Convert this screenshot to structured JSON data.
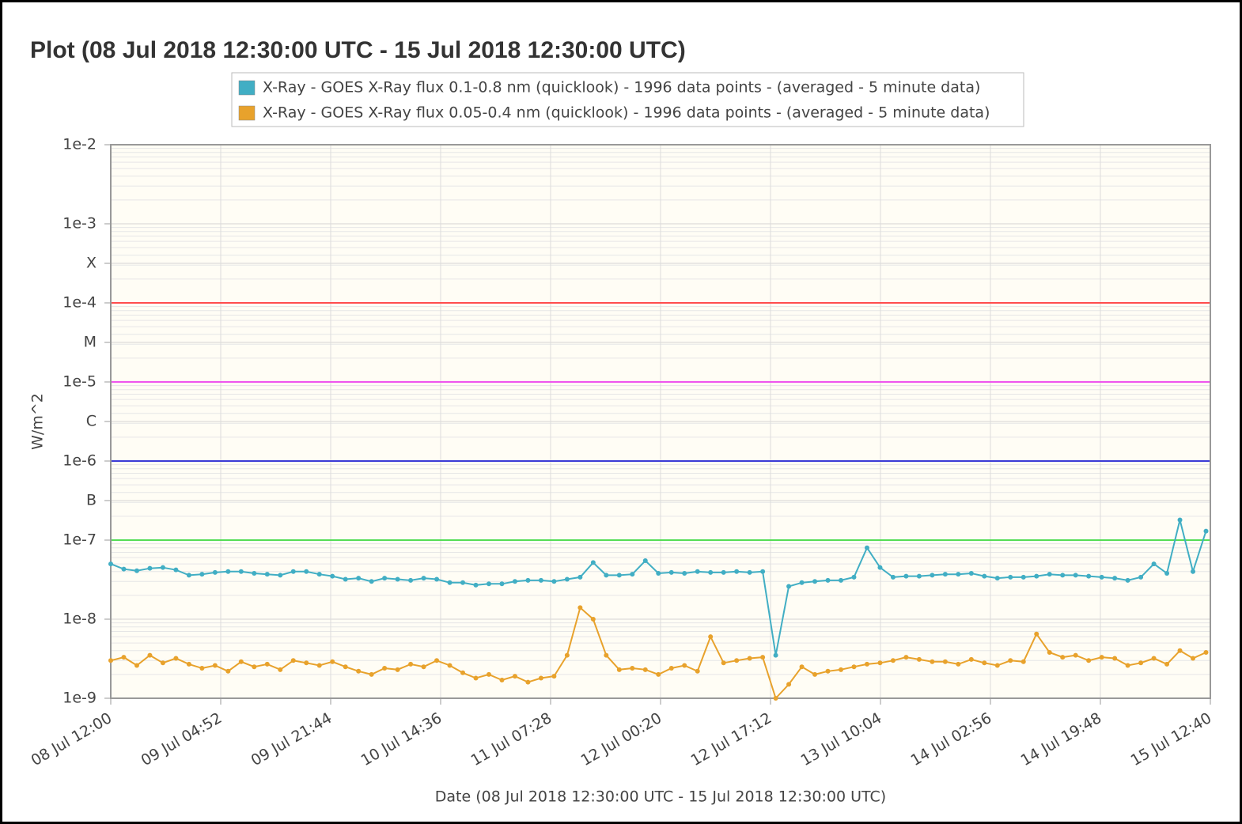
{
  "chart_data": {
    "type": "line",
    "title": "Plot (08 Jul 2018 12:30:00 UTC - 15 Jul 2018 12:30:00 UTC)",
    "x_label": "Date (08 Jul 2018 12:30:00 UTC - 15 Jul 2018 12:30:00 UTC)",
    "y_label": "W/m^2",
    "log_scale": true,
    "grid": true,
    "legend": "top",
    "xlim": [
      "2018-07-08T12:00",
      "2018-07-15T12:40"
    ],
    "xticks": [
      {
        "value": "2018-07-08T12:00",
        "label": "08 Jul 12:00"
      },
      {
        "value": "2018-07-09T04:52",
        "label": "09 Jul 04:52"
      },
      {
        "value": "2018-07-09T21:44",
        "label": "09 Jul 21:44"
      },
      {
        "value": "2018-07-10T14:36",
        "label": "10 Jul 14:36"
      },
      {
        "value": "2018-07-11T07:28",
        "label": "11 Jul 07:28"
      },
      {
        "value": "2018-07-12T00:20",
        "label": "12 Jul 00:20"
      },
      {
        "value": "2018-07-12T17:12",
        "label": "12 Jul 17:12"
      },
      {
        "value": "2018-07-13T10:04",
        "label": "13 Jul 10:04"
      },
      {
        "value": "2018-07-14T02:56",
        "label": "14 Jul 02:56"
      },
      {
        "value": "2018-07-14T19:48",
        "label": "14 Jul 19:48"
      },
      {
        "value": "2018-07-15T12:40",
        "label": "15 Jul 12:40"
      }
    ],
    "ylim": [
      1e-09,
      0.01
    ],
    "yticks": [
      {
        "value": 1e-09,
        "label": "1e-9"
      },
      {
        "value": 1e-08,
        "label": "1e-8"
      },
      {
        "value": 1e-07,
        "label": "1e-7"
      },
      {
        "value": 3.162e-07,
        "label": "B"
      },
      {
        "value": 1e-06,
        "label": "1e-6"
      },
      {
        "value": 3.162e-06,
        "label": "C"
      },
      {
        "value": 1e-05,
        "label": "1e-5"
      },
      {
        "value": 3.162e-05,
        "label": "M"
      },
      {
        "value": 0.0001,
        "label": "1e-4"
      },
      {
        "value": 0.0003162,
        "label": "X"
      },
      {
        "value": 0.001,
        "label": "1e-3"
      },
      {
        "value": 0.01,
        "label": "1e-2"
      }
    ],
    "thresholds": [
      {
        "value": 0.0001,
        "color": "#ff4d4d"
      },
      {
        "value": 1e-05,
        "color": "#ee55ee"
      },
      {
        "value": 1e-06,
        "color": "#3a3ad6"
      },
      {
        "value": 1e-07,
        "color": "#55dd55"
      }
    ],
    "x": [
      "2018-07-08T12:00",
      "2018-07-08T14:00",
      "2018-07-08T16:00",
      "2018-07-08T18:00",
      "2018-07-08T20:00",
      "2018-07-08T22:00",
      "2018-07-09T00:00",
      "2018-07-09T02:00",
      "2018-07-09T04:00",
      "2018-07-09T06:00",
      "2018-07-09T08:00",
      "2018-07-09T10:00",
      "2018-07-09T12:00",
      "2018-07-09T14:00",
      "2018-07-09T16:00",
      "2018-07-09T18:00",
      "2018-07-09T20:00",
      "2018-07-09T22:00",
      "2018-07-10T00:00",
      "2018-07-10T02:00",
      "2018-07-10T04:00",
      "2018-07-10T06:00",
      "2018-07-10T08:00",
      "2018-07-10T10:00",
      "2018-07-10T12:00",
      "2018-07-10T14:00",
      "2018-07-10T16:00",
      "2018-07-10T18:00",
      "2018-07-10T20:00",
      "2018-07-10T22:00",
      "2018-07-11T00:00",
      "2018-07-11T02:00",
      "2018-07-11T04:00",
      "2018-07-11T06:00",
      "2018-07-11T08:00",
      "2018-07-11T10:00",
      "2018-07-11T12:00",
      "2018-07-11T14:00",
      "2018-07-11T16:00",
      "2018-07-11T18:00",
      "2018-07-11T20:00",
      "2018-07-11T22:00",
      "2018-07-12T00:00",
      "2018-07-12T02:00",
      "2018-07-12T04:00",
      "2018-07-12T06:00",
      "2018-07-12T08:00",
      "2018-07-12T10:00",
      "2018-07-12T12:00",
      "2018-07-12T14:00",
      "2018-07-12T16:00",
      "2018-07-12T18:00",
      "2018-07-12T20:00",
      "2018-07-12T22:00",
      "2018-07-13T00:00",
      "2018-07-13T02:00",
      "2018-07-13T04:00",
      "2018-07-13T06:00",
      "2018-07-13T08:00",
      "2018-07-13T10:00",
      "2018-07-13T12:00",
      "2018-07-13T14:00",
      "2018-07-13T16:00",
      "2018-07-13T18:00",
      "2018-07-13T20:00",
      "2018-07-13T22:00",
      "2018-07-14T00:00",
      "2018-07-14T02:00",
      "2018-07-14T04:00",
      "2018-07-14T06:00",
      "2018-07-14T08:00",
      "2018-07-14T10:00",
      "2018-07-14T12:00",
      "2018-07-14T14:00",
      "2018-07-14T16:00",
      "2018-07-14T18:00",
      "2018-07-14T20:00",
      "2018-07-14T22:00",
      "2018-07-15T00:00",
      "2018-07-15T02:00",
      "2018-07-15T04:00",
      "2018-07-15T06:00",
      "2018-07-15T08:00",
      "2018-07-15T10:00",
      "2018-07-15T12:00"
    ],
    "series": [
      {
        "name": "X-Ray - GOES X-Ray flux 0.1-0.8 nm (quicklook) - 1996 data points - (averaged - 5 minute data)",
        "color": "#41aec4",
        "values": [
          5e-08,
          4.3e-08,
          4.1e-08,
          4.4e-08,
          4.5e-08,
          4.2e-08,
          3.6e-08,
          3.7e-08,
          3.9e-08,
          4e-08,
          4e-08,
          3.8e-08,
          3.7e-08,
          3.6e-08,
          4e-08,
          4e-08,
          3.7e-08,
          3.5e-08,
          3.2e-08,
          3.3e-08,
          3e-08,
          3.3e-08,
          3.2e-08,
          3.1e-08,
          3.3e-08,
          3.2e-08,
          2.9e-08,
          2.9e-08,
          2.7e-08,
          2.8e-08,
          2.8e-08,
          3e-08,
          3.1e-08,
          3.1e-08,
          3e-08,
          3.2e-08,
          3.4e-08,
          5.2e-08,
          3.6e-08,
          3.6e-08,
          3.7e-08,
          5.5e-08,
          3.8e-08,
          3.9e-08,
          3.8e-08,
          4e-08,
          3.9e-08,
          3.9e-08,
          4e-08,
          3.9e-08,
          4e-08,
          3.5e-09,
          2.6e-08,
          2.9e-08,
          3e-08,
          3.1e-08,
          3.1e-08,
          3.4e-08,
          8e-08,
          4.5e-08,
          3.4e-08,
          3.5e-08,
          3.5e-08,
          3.6e-08,
          3.7e-08,
          3.7e-08,
          3.8e-08,
          3.5e-08,
          3.3e-08,
          3.4e-08,
          3.4e-08,
          3.5e-08,
          3.7e-08,
          3.6e-08,
          3.6e-08,
          3.5e-08,
          3.4e-08,
          3.3e-08,
          3.1e-08,
          3.4e-08,
          5e-08,
          3.8e-08,
          1.8e-07,
          4e-08,
          1.3e-07
        ]
      },
      {
        "name": "X-Ray - GOES X-Ray flux 0.05-0.4 nm (quicklook) - 1996 data points - (averaged - 5 minute data)",
        "color": "#e8a22c",
        "values": [
          3e-09,
          3.3e-09,
          2.6e-09,
          3.5e-09,
          2.8e-09,
          3.2e-09,
          2.7e-09,
          2.4e-09,
          2.6e-09,
          2.2e-09,
          2.9e-09,
          2.5e-09,
          2.7e-09,
          2.3e-09,
          3e-09,
          2.8e-09,
          2.6e-09,
          2.9e-09,
          2.5e-09,
          2.2e-09,
          2e-09,
          2.4e-09,
          2.3e-09,
          2.7e-09,
          2.5e-09,
          3e-09,
          2.6e-09,
          2.1e-09,
          1.8e-09,
          2e-09,
          1.7e-09,
          1.9e-09,
          1.6e-09,
          1.8e-09,
          1.9e-09,
          3.5e-09,
          1.4e-08,
          1e-08,
          3.5e-09,
          2.3e-09,
          2.4e-09,
          2.3e-09,
          2e-09,
          2.4e-09,
          2.6e-09,
          2.2e-09,
          6e-09,
          2.8e-09,
          3e-09,
          3.2e-09,
          3.3e-09,
          1e-09,
          1.5e-09,
          2.5e-09,
          2e-09,
          2.2e-09,
          2.3e-09,
          2.5e-09,
          2.7e-09,
          2.8e-09,
          3e-09,
          3.3e-09,
          3.1e-09,
          2.9e-09,
          2.9e-09,
          2.7e-09,
          3.1e-09,
          2.8e-09,
          2.6e-09,
          3e-09,
          2.9e-09,
          6.5e-09,
          3.8e-09,
          3.3e-09,
          3.5e-09,
          3e-09,
          3.3e-09,
          3.2e-09,
          2.6e-09,
          2.8e-09,
          3.2e-09,
          2.7e-09,
          4e-09,
          3.2e-09,
          3.8e-09
        ]
      }
    ]
  }
}
